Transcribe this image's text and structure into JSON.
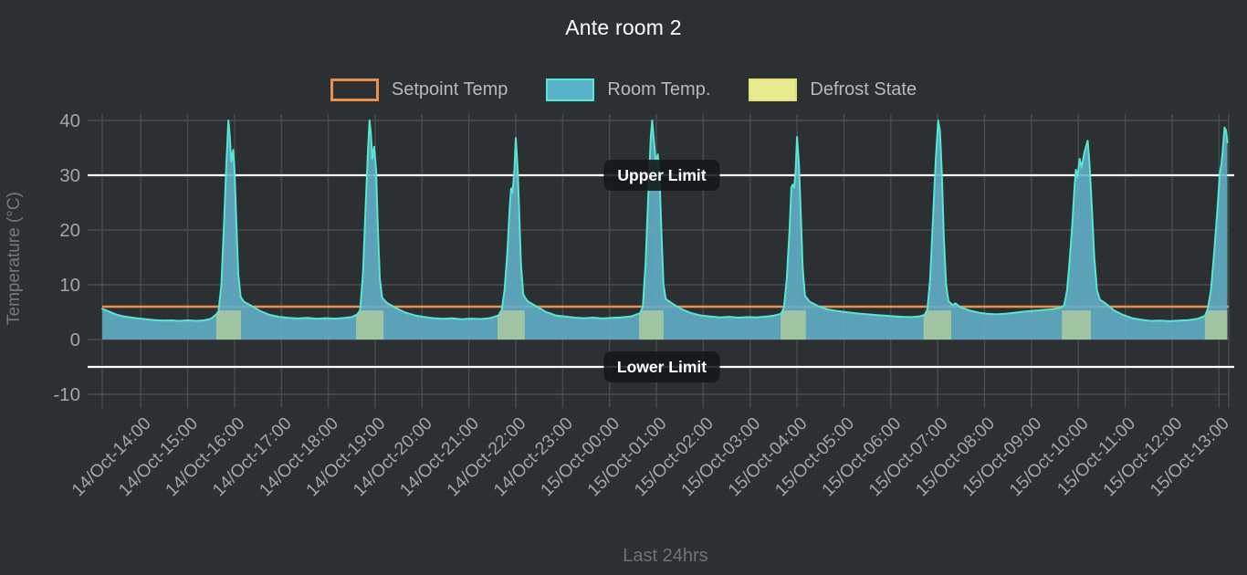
{
  "title": "Ante room 2",
  "legend": {
    "items": [
      {
        "label": "Setpoint Temp",
        "type": "setpoint"
      },
      {
        "label": "Room Temp.",
        "type": "room"
      },
      {
        "label": "Defrost State",
        "type": "defrost"
      }
    ]
  },
  "colors": {
    "background": "#2c3033",
    "grid": "#484d50",
    "tick_text": "#a3a6a8",
    "dim_text": "#6f7376",
    "title_text": "#ffffff",
    "legend_text": "#b7babc",
    "setpoint": "#e8914e",
    "room_fill": "#62b1ca",
    "room_line": "#57e6d2",
    "defrost_fill": "#e7ea8d",
    "limit_line": "#ffffff",
    "pill_bg": "#141719"
  },
  "chart_data": {
    "type": "area",
    "title": "Ante room 2",
    "xlabel": "Last 24hrs",
    "ylabel": "Temperature (°C)",
    "ylim": [
      -10,
      40
    ],
    "yticks": [
      40,
      30,
      20,
      10,
      0,
      -10
    ],
    "grid": true,
    "legend_position": "top",
    "x_tick_labels": [
      "14/Oct-14:00",
      "14/Oct-15:00",
      "14/Oct-16:00",
      "14/Oct-17:00",
      "14/Oct-18:00",
      "14/Oct-19:00",
      "14/Oct-20:00",
      "14/Oct-21:00",
      "14/Oct-22:00",
      "14/Oct-23:00",
      "15/Oct-00:00",
      "15/Oct-01:00",
      "15/Oct-02:00",
      "15/Oct-03:00",
      "15/Oct-04:00",
      "15/Oct-05:00",
      "15/Oct-06:00",
      "15/Oct-07:00",
      "15/Oct-08:00",
      "15/Oct-09:00",
      "15/Oct-10:00",
      "15/Oct-11:00",
      "15/Oct-12:00",
      "15/Oct-13:00"
    ],
    "setpoint": {
      "name": "Setpoint Temp",
      "value": 6
    },
    "annotations": [
      {
        "label": "Upper Limit",
        "value": 30
      },
      {
        "label": "Lower Limit",
        "value": -5
      }
    ],
    "defrost": {
      "name": "Defrost State",
      "level": 5.3,
      "bands": [
        [
          1.61,
          2.14
        ],
        [
          4.59,
          5.18
        ],
        [
          7.61,
          8.19
        ],
        [
          10.63,
          11.15
        ],
        [
          13.65,
          14.19
        ],
        [
          16.7,
          17.29
        ],
        [
          19.65,
          20.27
        ],
        [
          22.7,
          23.18
        ]
      ]
    },
    "series": [
      {
        "name": "Room Temp.",
        "x_unit": "hours since 14/Oct-14:00",
        "points": [
          [
            -0.82,
            5.6
          ],
          [
            -0.73,
            5.3
          ],
          [
            -0.62,
            4.9
          ],
          [
            -0.5,
            4.5
          ],
          [
            -0.38,
            4.25
          ],
          [
            -0.22,
            4.05
          ],
          [
            -0.05,
            3.85
          ],
          [
            0.12,
            3.7
          ],
          [
            0.3,
            3.55
          ],
          [
            0.48,
            3.45
          ],
          [
            0.65,
            3.5
          ],
          [
            0.82,
            3.4
          ],
          [
            1.0,
            3.5
          ],
          [
            1.18,
            3.42
          ],
          [
            1.35,
            3.5
          ],
          [
            1.5,
            3.8
          ],
          [
            1.61,
            4.6
          ],
          [
            1.66,
            5.2
          ],
          [
            1.72,
            10
          ],
          [
            1.78,
            22
          ],
          [
            1.83,
            33
          ],
          [
            1.87,
            40
          ],
          [
            1.9,
            37
          ],
          [
            1.93,
            32.5
          ],
          [
            1.97,
            34.6
          ],
          [
            2.0,
            31
          ],
          [
            2.04,
            21
          ],
          [
            2.08,
            12
          ],
          [
            2.13,
            7.8
          ],
          [
            2.2,
            6.9
          ],
          [
            2.35,
            6.2
          ],
          [
            2.55,
            5.2
          ],
          [
            2.75,
            4.5
          ],
          [
            2.95,
            4.15
          ],
          [
            3.15,
            3.95
          ],
          [
            3.35,
            3.85
          ],
          [
            3.55,
            3.95
          ],
          [
            3.75,
            3.8
          ],
          [
            3.95,
            3.9
          ],
          [
            4.15,
            3.82
          ],
          [
            4.35,
            3.95
          ],
          [
            4.5,
            4.1
          ],
          [
            4.62,
            4.6
          ],
          [
            4.68,
            5.4
          ],
          [
            4.74,
            12
          ],
          [
            4.8,
            25
          ],
          [
            4.85,
            35
          ],
          [
            4.88,
            40
          ],
          [
            4.91,
            37.5
          ],
          [
            4.94,
            33
          ],
          [
            4.98,
            35.2
          ],
          [
            5.02,
            31
          ],
          [
            5.06,
            20
          ],
          [
            5.1,
            11
          ],
          [
            5.15,
            7.6
          ],
          [
            5.25,
            6.7
          ],
          [
            5.45,
            5.7
          ],
          [
            5.65,
            4.9
          ],
          [
            5.85,
            4.4
          ],
          [
            6.05,
            4.1
          ],
          [
            6.25,
            3.9
          ],
          [
            6.45,
            3.78
          ],
          [
            6.65,
            3.88
          ],
          [
            6.85,
            3.7
          ],
          [
            7.05,
            3.82
          ],
          [
            7.25,
            3.75
          ],
          [
            7.45,
            3.9
          ],
          [
            7.63,
            4.4
          ],
          [
            7.7,
            5.4
          ],
          [
            7.76,
            9
          ],
          [
            7.82,
            16
          ],
          [
            7.87,
            24
          ],
          [
            7.9,
            27.6
          ],
          [
            7.93,
            26.8
          ],
          [
            7.97,
            31
          ],
          [
            8.0,
            36.8
          ],
          [
            8.04,
            31
          ],
          [
            8.07,
            24
          ],
          [
            8.11,
            14
          ],
          [
            8.16,
            8.2
          ],
          [
            8.25,
            7.0
          ],
          [
            8.45,
            6.0
          ],
          [
            8.65,
            5.0
          ],
          [
            8.85,
            4.4
          ],
          [
            9.05,
            4.2
          ],
          [
            9.25,
            4.0
          ],
          [
            9.45,
            3.9
          ],
          [
            9.65,
            4.0
          ],
          [
            9.85,
            3.85
          ],
          [
            10.05,
            3.95
          ],
          [
            10.25,
            4.05
          ],
          [
            10.45,
            4.2
          ],
          [
            10.65,
            4.8
          ],
          [
            10.71,
            6.0
          ],
          [
            10.77,
            14
          ],
          [
            10.83,
            27
          ],
          [
            10.88,
            37
          ],
          [
            10.91,
            40
          ],
          [
            10.95,
            36
          ],
          [
            10.99,
            32.3
          ],
          [
            11.03,
            33.8
          ],
          [
            11.07,
            29
          ],
          [
            11.11,
            19
          ],
          [
            11.15,
            10
          ],
          [
            11.2,
            7.4
          ],
          [
            11.35,
            6.5
          ],
          [
            11.55,
            5.5
          ],
          [
            11.75,
            4.8
          ],
          [
            11.95,
            4.4
          ],
          [
            12.15,
            4.2
          ],
          [
            12.35,
            4.05
          ],
          [
            12.55,
            4.15
          ],
          [
            12.75,
            4.0
          ],
          [
            12.95,
            4.1
          ],
          [
            13.15,
            4.05
          ],
          [
            13.35,
            4.2
          ],
          [
            13.5,
            4.35
          ],
          [
            13.66,
            4.7
          ],
          [
            13.72,
            5.8
          ],
          [
            13.78,
            11
          ],
          [
            13.84,
            20
          ],
          [
            13.88,
            27.8
          ],
          [
            13.91,
            28.3
          ],
          [
            13.94,
            27.7
          ],
          [
            13.97,
            31
          ],
          [
            14.0,
            37
          ],
          [
            14.04,
            32
          ],
          [
            14.08,
            23
          ],
          [
            14.12,
            13
          ],
          [
            14.17,
            8
          ],
          [
            14.27,
            6.9
          ],
          [
            14.45,
            6.1
          ],
          [
            14.65,
            5.5
          ],
          [
            14.85,
            5.2
          ],
          [
            15.05,
            5.0
          ],
          [
            15.25,
            4.8
          ],
          [
            15.45,
            4.65
          ],
          [
            15.65,
            4.5
          ],
          [
            15.85,
            4.38
          ],
          [
            16.05,
            4.25
          ],
          [
            16.25,
            4.15
          ],
          [
            16.45,
            4.1
          ],
          [
            16.6,
            4.2
          ],
          [
            16.72,
            4.5
          ],
          [
            16.78,
            5.5
          ],
          [
            16.84,
            11
          ],
          [
            16.9,
            22
          ],
          [
            16.96,
            33
          ],
          [
            17.01,
            40
          ],
          [
            17.05,
            38
          ],
          [
            17.09,
            30
          ],
          [
            17.13,
            19
          ],
          [
            17.18,
            10
          ],
          [
            17.23,
            7.0
          ],
          [
            17.32,
            6.3
          ],
          [
            17.38,
            6.6
          ],
          [
            17.48,
            5.9
          ],
          [
            17.68,
            5.3
          ],
          [
            17.88,
            4.9
          ],
          [
            18.05,
            4.7
          ],
          [
            18.25,
            4.6
          ],
          [
            18.45,
            4.7
          ],
          [
            18.65,
            4.9
          ],
          [
            18.85,
            5.1
          ],
          [
            19.05,
            5.25
          ],
          [
            19.25,
            5.4
          ],
          [
            19.45,
            5.55
          ],
          [
            19.62,
            5.8
          ],
          [
            19.7,
            6.3
          ],
          [
            19.76,
            9
          ],
          [
            19.82,
            15
          ],
          [
            19.88,
            22
          ],
          [
            19.92,
            28
          ],
          [
            19.95,
            31
          ],
          [
            19.98,
            29.6
          ],
          [
            20.03,
            33
          ],
          [
            20.07,
            31.4
          ],
          [
            20.13,
            34.2
          ],
          [
            20.2,
            36.3
          ],
          [
            20.24,
            32
          ],
          [
            20.29,
            24
          ],
          [
            20.34,
            15
          ],
          [
            20.4,
            9
          ],
          [
            20.46,
            7.3
          ],
          [
            20.58,
            6.6
          ],
          [
            20.75,
            5.4
          ],
          [
            20.95,
            4.5
          ],
          [
            21.15,
            3.9
          ],
          [
            21.35,
            3.6
          ],
          [
            21.55,
            3.4
          ],
          [
            21.75,
            3.45
          ],
          [
            21.95,
            3.35
          ],
          [
            22.15,
            3.45
          ],
          [
            22.35,
            3.55
          ],
          [
            22.55,
            3.8
          ],
          [
            22.7,
            4.3
          ],
          [
            22.76,
            5.5
          ],
          [
            22.83,
            9
          ],
          [
            22.9,
            16
          ],
          [
            22.97,
            24
          ],
          [
            23.02,
            30.5
          ],
          [
            23.05,
            31.8
          ],
          [
            23.08,
            34.5
          ],
          [
            23.12,
            38.7
          ],
          [
            23.15,
            38.2
          ],
          [
            23.18,
            36
          ]
        ]
      }
    ]
  }
}
